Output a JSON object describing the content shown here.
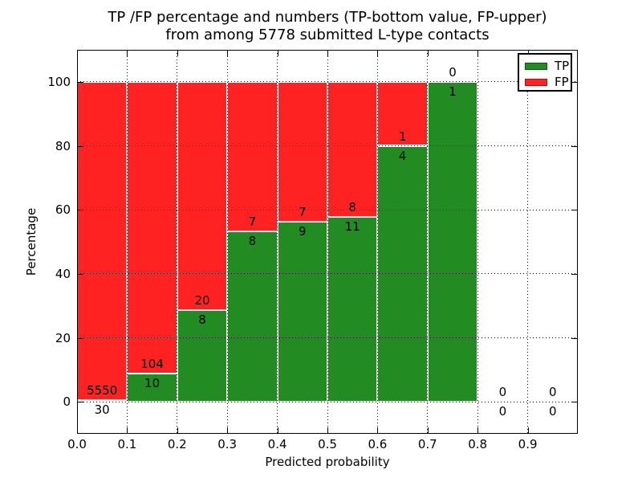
{
  "title": {
    "line1": "TP /FP percentage and numbers (TP-bottom value, FP-upper)",
    "line2": "from among 5778 submitted L-type contacts"
  },
  "chart_data": {
    "type": "bar",
    "stacked": true,
    "title": "TP /FP percentage and numbers (TP-bottom value, FP-upper)\nfrom among 5778 submitted L-type contacts",
    "xlabel": "Predicted probability",
    "ylabel": "Percentage",
    "xlim": [
      0.0,
      1.0
    ],
    "ylim": [
      -10,
      110
    ],
    "xticks": [
      0.0,
      0.1,
      0.2,
      0.3,
      0.4,
      0.5,
      0.6,
      0.7,
      0.8,
      0.9
    ],
    "xtick_labels": [
      "0.0",
      "0.1",
      "0.2",
      "0.3",
      "0.4",
      "0.5",
      "0.6",
      "0.7",
      "0.8",
      "0.9"
    ],
    "yticks": [
      0,
      20,
      40,
      60,
      80,
      100
    ],
    "grid": "dotted",
    "legend_position": "upper-right",
    "total_submitted": 5778,
    "bin_edges": [
      0.0,
      0.1,
      0.2,
      0.3,
      0.4,
      0.5,
      0.6,
      0.7,
      0.8,
      0.9,
      1.0
    ],
    "series": [
      {
        "name": "TP",
        "color": "#228b22",
        "counts": [
          30,
          10,
          8,
          8,
          9,
          11,
          4,
          1,
          0,
          0
        ]
      },
      {
        "name": "FP",
        "color": "#ff2222",
        "counts": [
          5550,
          104,
          20,
          7,
          7,
          8,
          1,
          0,
          0,
          0
        ]
      }
    ],
    "tp_percent_heights": [
      0.54,
      8.77,
      28.57,
      53.33,
      56.25,
      57.89,
      80.0,
      100.0,
      0,
      0
    ]
  }
}
